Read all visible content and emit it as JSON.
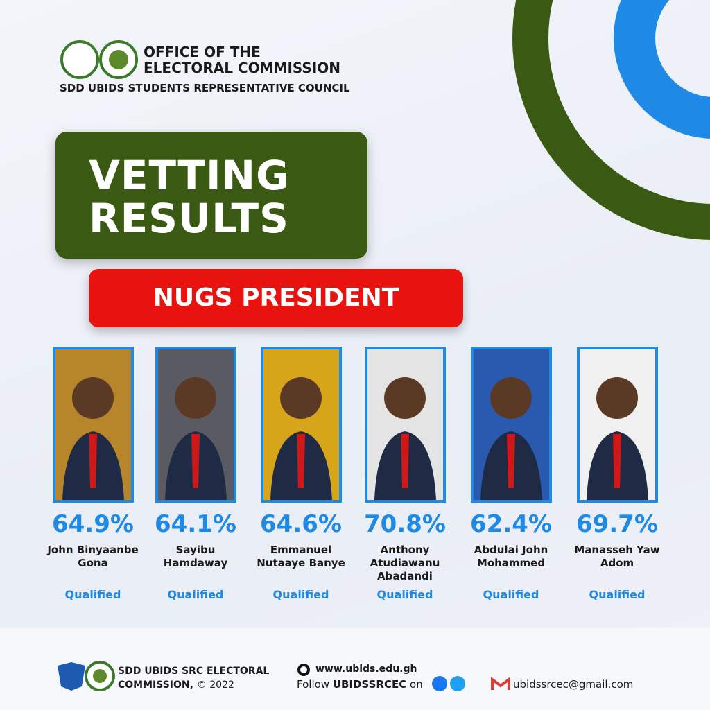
{
  "header": {
    "line1": "OFFICE OF THE",
    "line2": "ELECTORAL COMMISSION",
    "line3": "SDD UBIDS STUDENTS REPRESENTATIVE COUNCIL"
  },
  "title": {
    "line1": "VETTING",
    "line2": "RESULTS"
  },
  "subtitle": "NUGS PRESIDENT",
  "candidates": [
    {
      "percent": "64.9%",
      "name": "John Binyaanbe Gona",
      "status": "Qualified"
    },
    {
      "percent": "64.1%",
      "name": "Sayibu Hamdaway",
      "status": "Qualified"
    },
    {
      "percent": "64.6%",
      "name": "Emmanuel Nutaaye Banye",
      "status": "Qualified"
    },
    {
      "percent": "70.8%",
      "name": "Anthony Atudiawanu Abadandi",
      "status": "Qualified"
    },
    {
      "percent": "62.4%",
      "name": "Abdulai John Mohammed",
      "status": "Qualified"
    },
    {
      "percent": "69.7%",
      "name": "Manasseh Yaw Adom",
      "status": "Qualified"
    }
  ],
  "footer": {
    "org1": "SDD UBIDS SRC ELECTORAL",
    "org2": "COMMISSION,",
    "copyright": "© 2022",
    "website": "www.ubids.edu.gh",
    "follow": "Follow",
    "handle": "UBIDSSRCEC",
    "on": "on",
    "email": "ubidssrcec@gmail.com"
  }
}
